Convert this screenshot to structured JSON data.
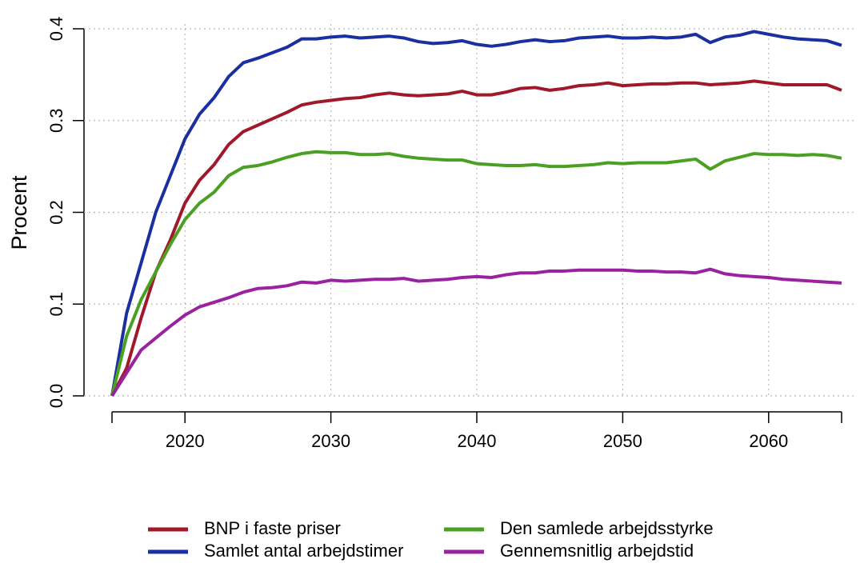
{
  "chart_data": {
    "type": "line",
    "y_label": "Procent",
    "x": [
      2015,
      2016,
      2017,
      2018,
      2019,
      2020,
      2021,
      2022,
      2023,
      2024,
      2025,
      2026,
      2027,
      2028,
      2029,
      2030,
      2031,
      2032,
      2033,
      2034,
      2035,
      2036,
      2037,
      2038,
      2039,
      2040,
      2041,
      2042,
      2043,
      2044,
      2045,
      2046,
      2047,
      2048,
      2049,
      2050,
      2051,
      2052,
      2053,
      2054,
      2055,
      2056,
      2057,
      2058,
      2059,
      2060,
      2061,
      2062,
      2063,
      2064,
      2065
    ],
    "series": [
      {
        "name": "BNP i faste priser",
        "color": "#a0192a",
        "values": [
          0,
          0.03,
          0.085,
          0.135,
          0.17,
          0.21,
          0.235,
          0.252,
          0.274,
          0.288,
          0.295,
          0.302,
          0.309,
          0.317,
          0.32,
          0.322,
          0.324,
          0.325,
          0.328,
          0.33,
          0.328,
          0.327,
          0.328,
          0.329,
          0.332,
          0.328,
          0.328,
          0.331,
          0.335,
          0.336,
          0.333,
          0.335,
          0.338,
          0.339,
          0.341,
          0.338,
          0.339,
          0.34,
          0.34,
          0.341,
          0.341,
          0.339,
          0.34,
          0.341,
          0.343,
          0.341,
          0.339,
          0.339,
          0.339,
          0.339,
          0.333
        ]
      },
      {
        "name": "Samlet antal arbejdstimer",
        "color": "#1a2fa0",
        "values": [
          0,
          0.09,
          0.145,
          0.2,
          0.24,
          0.28,
          0.307,
          0.325,
          0.348,
          0.363,
          0.368,
          0.374,
          0.38,
          0.389,
          0.389,
          0.391,
          0.392,
          0.39,
          0.391,
          0.392,
          0.39,
          0.386,
          0.384,
          0.385,
          0.387,
          0.383,
          0.381,
          0.383,
          0.386,
          0.388,
          0.386,
          0.387,
          0.39,
          0.391,
          0.392,
          0.39,
          0.39,
          0.391,
          0.39,
          0.391,
          0.394,
          0.385,
          0.391,
          0.393,
          0.397,
          0.394,
          0.391,
          0.389,
          0.388,
          0.387,
          0.382
        ]
      },
      {
        "name": "Den samlede arbejdsstyrke",
        "color": "#4aa023",
        "values": [
          0,
          0.065,
          0.105,
          0.135,
          0.165,
          0.192,
          0.21,
          0.222,
          0.24,
          0.249,
          0.251,
          0.255,
          0.26,
          0.264,
          0.266,
          0.265,
          0.265,
          0.263,
          0.263,
          0.264,
          0.261,
          0.259,
          0.258,
          0.257,
          0.257,
          0.253,
          0.252,
          0.251,
          0.251,
          0.252,
          0.25,
          0.25,
          0.251,
          0.252,
          0.254,
          0.253,
          0.254,
          0.254,
          0.254,
          0.256,
          0.258,
          0.247,
          0.256,
          0.26,
          0.264,
          0.263,
          0.263,
          0.262,
          0.263,
          0.262,
          0.259
        ]
      },
      {
        "name": "Gennemsnitlig arbejdstid",
        "color": "#9922a0",
        "values": [
          0,
          0.025,
          0.05,
          0.063,
          0.076,
          0.088,
          0.097,
          0.102,
          0.107,
          0.113,
          0.117,
          0.118,
          0.12,
          0.124,
          0.123,
          0.126,
          0.125,
          0.126,
          0.127,
          0.127,
          0.128,
          0.125,
          0.126,
          0.127,
          0.129,
          0.13,
          0.129,
          0.132,
          0.134,
          0.134,
          0.136,
          0.136,
          0.137,
          0.137,
          0.137,
          0.137,
          0.136,
          0.136,
          0.135,
          0.135,
          0.134,
          0.138,
          0.133,
          0.131,
          0.13,
          0.129,
          0.127,
          0.126,
          0.125,
          0.124,
          0.123
        ]
      }
    ],
    "xlim": [
      2015,
      2065
    ],
    "xticks": [
      2020,
      2030,
      2040,
      2050,
      2060
    ],
    "ylim": [
      0,
      0.4
    ],
    "yticks": [
      {
        "value": 0,
        "label": "0.0"
      },
      0.1,
      0.2,
      0.3,
      0.4
    ],
    "grid": true
  }
}
